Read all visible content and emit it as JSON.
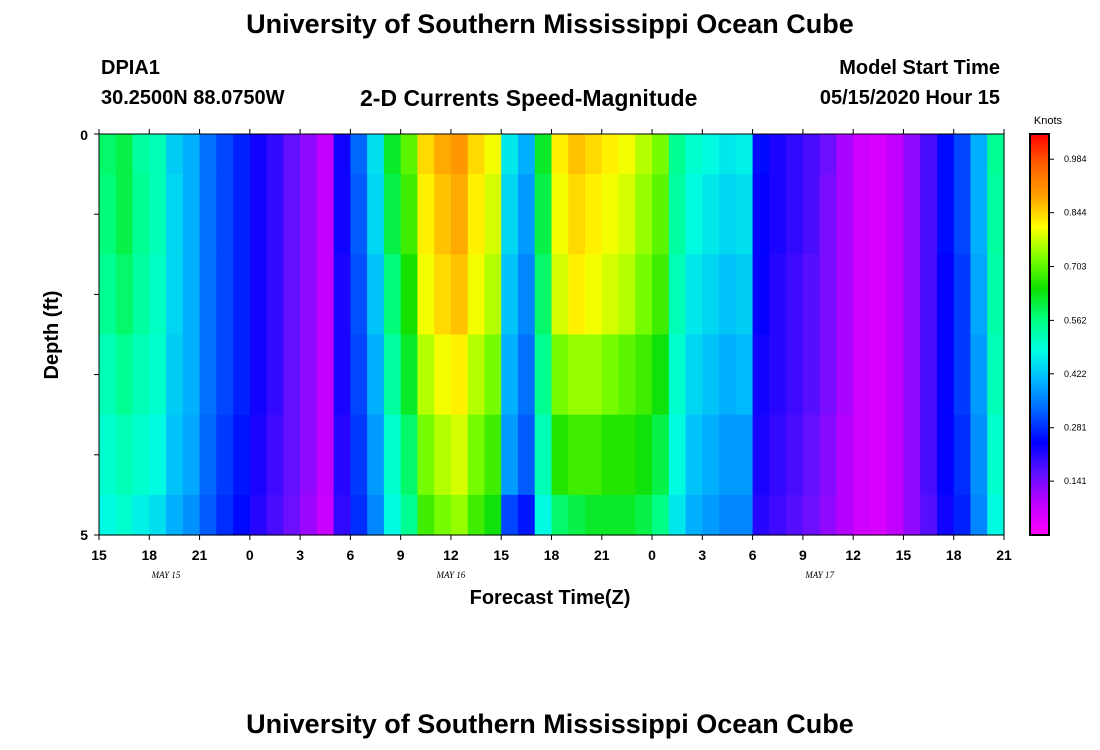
{
  "header": {
    "title": "University of Southern Mississippi Ocean Cube",
    "station": "DPIA1",
    "location": "30.2500N 88.0750W",
    "subtitle": "2-D Currents Speed-Magnitude",
    "model_label": "Model Start Time",
    "model_time": "05/15/2020 Hour 15"
  },
  "footer": {
    "title": "University of Southern Mississippi Ocean Cube"
  },
  "chart_data": {
    "type": "heatmap",
    "title": "2-D Currents Speed-Magnitude",
    "xlabel": "Forecast Time(Z)",
    "ylabel": "Depth (ft)",
    "ylim": [
      0,
      5
    ],
    "y_tick_labels": [
      "0",
      "5"
    ],
    "x_tick_labels": [
      "15",
      "18",
      "21",
      "0",
      "3",
      "6",
      "9",
      "12",
      "15",
      "18",
      "21",
      "0",
      "3",
      "6",
      "9",
      "12",
      "15",
      "18",
      "21"
    ],
    "date_labels": [
      {
        "text": "MAY 15",
        "hour_index": 4
      },
      {
        "text": "MAY 16",
        "hour_index": 21
      },
      {
        "text": "MAY 17",
        "hour_index": 43
      }
    ],
    "hours": 54,
    "colorbar": {
      "unit": "Knots",
      "min": 0.0,
      "max": 1.05,
      "ticks": [
        "0.984",
        "0.844",
        "0.703",
        "0.562",
        "0.422",
        "0.281",
        "0.141"
      ],
      "tick_values": [
        0.984,
        0.844,
        0.703,
        0.562,
        0.422,
        0.281,
        0.141
      ],
      "stops": [
        "#ff00ff",
        "#c000ff",
        "#6010ff",
        "#0000ff",
        "#0060ff",
        "#00b4ff",
        "#00ffe0",
        "#00ff80",
        "#10e000",
        "#80ff00",
        "#ffff00",
        "#ffa000",
        "#ff6000",
        "#ff0000"
      ]
    },
    "depth_layers": [
      "0-0.5",
      "0.5-1.5",
      "1.5-2.5",
      "2.5-3.5",
      "3.5-4.5",
      "4.5-5"
    ],
    "speed_knots": [
      [
        0.58,
        0.6,
        0.54,
        0.52,
        0.43,
        0.4,
        0.34,
        0.3,
        0.27,
        0.23,
        0.2,
        0.16,
        0.12,
        0.08,
        0.23,
        0.33,
        0.45,
        0.62,
        0.7,
        0.84,
        0.88,
        0.9,
        0.84,
        0.8,
        0.46,
        0.4,
        0.62,
        0.82,
        0.86,
        0.84,
        0.82,
        0.8,
        0.76,
        0.72,
        0.55,
        0.5,
        0.48,
        0.46,
        0.47,
        0.25,
        0.22,
        0.2,
        0.18,
        0.15,
        0.1,
        0.06,
        0.05,
        0.08,
        0.12,
        0.18,
        0.25,
        0.3,
        0.4,
        0.55
      ],
      [
        0.57,
        0.6,
        0.55,
        0.52,
        0.44,
        0.4,
        0.34,
        0.3,
        0.27,
        0.23,
        0.2,
        0.16,
        0.12,
        0.08,
        0.23,
        0.32,
        0.44,
        0.6,
        0.68,
        0.82,
        0.86,
        0.88,
        0.82,
        0.78,
        0.44,
        0.38,
        0.6,
        0.8,
        0.84,
        0.82,
        0.8,
        0.78,
        0.74,
        0.7,
        0.54,
        0.48,
        0.46,
        0.44,
        0.45,
        0.24,
        0.22,
        0.2,
        0.18,
        0.14,
        0.1,
        0.06,
        0.05,
        0.08,
        0.12,
        0.18,
        0.25,
        0.3,
        0.4,
        0.54
      ],
      [
        0.55,
        0.58,
        0.54,
        0.51,
        0.44,
        0.4,
        0.34,
        0.3,
        0.27,
        0.23,
        0.2,
        0.16,
        0.12,
        0.08,
        0.22,
        0.31,
        0.42,
        0.57,
        0.65,
        0.8,
        0.84,
        0.86,
        0.8,
        0.76,
        0.42,
        0.36,
        0.58,
        0.78,
        0.82,
        0.8,
        0.78,
        0.76,
        0.72,
        0.68,
        0.52,
        0.46,
        0.44,
        0.42,
        0.43,
        0.24,
        0.21,
        0.19,
        0.17,
        0.14,
        0.1,
        0.06,
        0.05,
        0.08,
        0.12,
        0.18,
        0.24,
        0.29,
        0.39,
        0.53
      ],
      [
        0.52,
        0.55,
        0.52,
        0.5,
        0.43,
        0.4,
        0.34,
        0.3,
        0.27,
        0.23,
        0.2,
        0.16,
        0.12,
        0.08,
        0.22,
        0.3,
        0.4,
        0.54,
        0.62,
        0.76,
        0.8,
        0.82,
        0.76,
        0.72,
        0.4,
        0.34,
        0.55,
        0.72,
        0.74,
        0.74,
        0.72,
        0.7,
        0.68,
        0.64,
        0.5,
        0.44,
        0.42,
        0.4,
        0.41,
        0.23,
        0.21,
        0.19,
        0.17,
        0.14,
        0.1,
        0.06,
        0.05,
        0.08,
        0.12,
        0.18,
        0.24,
        0.29,
        0.38,
        0.52
      ],
      [
        0.5,
        0.52,
        0.5,
        0.48,
        0.42,
        0.39,
        0.33,
        0.29,
        0.26,
        0.22,
        0.19,
        0.16,
        0.12,
        0.08,
        0.21,
        0.29,
        0.38,
        0.5,
        0.58,
        0.72,
        0.76,
        0.78,
        0.72,
        0.68,
        0.38,
        0.32,
        0.52,
        0.66,
        0.68,
        0.68,
        0.66,
        0.66,
        0.64,
        0.6,
        0.48,
        0.42,
        0.4,
        0.38,
        0.38,
        0.22,
        0.2,
        0.18,
        0.16,
        0.13,
        0.09,
        0.06,
        0.05,
        0.08,
        0.12,
        0.18,
        0.24,
        0.28,
        0.37,
        0.5
      ],
      [
        0.48,
        0.5,
        0.47,
        0.45,
        0.4,
        0.37,
        0.32,
        0.28,
        0.25,
        0.21,
        0.18,
        0.15,
        0.11,
        0.07,
        0.2,
        0.28,
        0.36,
        0.48,
        0.55,
        0.68,
        0.72,
        0.74,
        0.68,
        0.64,
        0.3,
        0.26,
        0.48,
        0.58,
        0.6,
        0.62,
        0.62,
        0.62,
        0.6,
        0.56,
        0.46,
        0.4,
        0.38,
        0.36,
        0.36,
        0.21,
        0.19,
        0.17,
        0.15,
        0.12,
        0.09,
        0.06,
        0.05,
        0.08,
        0.12,
        0.17,
        0.23,
        0.27,
        0.36,
        0.48
      ]
    ]
  }
}
